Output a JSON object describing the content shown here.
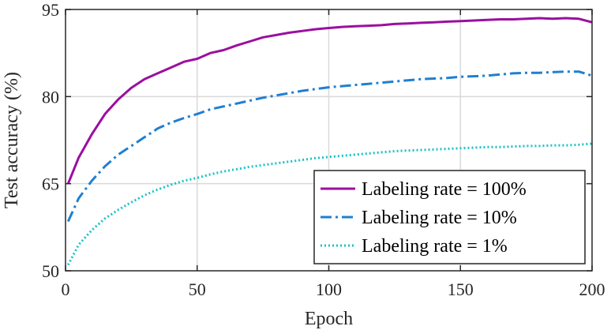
{
  "chart_data": {
    "type": "line",
    "title": "",
    "xlabel": "Epoch",
    "ylabel": "Test accuracy (%)",
    "xlim": [
      0,
      200
    ],
    "ylim": [
      50,
      95
    ],
    "xticks": [
      0,
      50,
      100,
      150,
      200
    ],
    "yticks": [
      50,
      65,
      80,
      95
    ],
    "xtick_labels": [
      "0",
      "50",
      "100",
      "150",
      "200"
    ],
    "ytick_labels": [
      "50",
      "65",
      "80",
      "95"
    ],
    "grid": true,
    "legend_position": "bottom-right",
    "series": [
      {
        "name": "Labeling rate = 100%",
        "color": "#9b0fa0",
        "style": "solid",
        "x": [
          1,
          5,
          10,
          15,
          20,
          25,
          30,
          35,
          40,
          45,
          50,
          55,
          60,
          65,
          70,
          75,
          80,
          85,
          90,
          95,
          100,
          105,
          110,
          115,
          120,
          125,
          130,
          135,
          140,
          145,
          150,
          155,
          160,
          165,
          170,
          175,
          180,
          185,
          190,
          195,
          200
        ],
        "values": [
          65,
          69.5,
          73.5,
          77,
          79.5,
          81.5,
          83,
          84,
          85,
          86,
          86.5,
          87.5,
          88,
          88.8,
          89.5,
          90.2,
          90.6,
          91,
          91.3,
          91.6,
          91.8,
          92,
          92.1,
          92.2,
          92.3,
          92.5,
          92.6,
          92.7,
          92.8,
          92.9,
          93,
          93.1,
          93.2,
          93.3,
          93.3,
          93.4,
          93.5,
          93.4,
          93.5,
          93.4,
          92.8
        ]
      },
      {
        "name": "Labeling rate = 10%",
        "color": "#1f7fd1",
        "style": "dash-dot",
        "x": [
          1,
          5,
          10,
          15,
          20,
          25,
          30,
          35,
          40,
          45,
          50,
          55,
          60,
          65,
          70,
          75,
          80,
          85,
          90,
          95,
          100,
          105,
          110,
          115,
          120,
          125,
          130,
          135,
          140,
          145,
          150,
          155,
          160,
          165,
          170,
          175,
          180,
          185,
          190,
          195,
          200
        ],
        "values": [
          58.5,
          62.5,
          65.5,
          68,
          70,
          71.5,
          73,
          74.5,
          75.5,
          76.3,
          77,
          77.8,
          78.3,
          78.8,
          79.3,
          79.8,
          80.2,
          80.6,
          81,
          81.3,
          81.6,
          81.8,
          82,
          82.2,
          82.4,
          82.6,
          82.8,
          83,
          83.1,
          83.2,
          83.4,
          83.5,
          83.6,
          83.8,
          84,
          84.1,
          84.1,
          84.2,
          84.3,
          84.3,
          83.6
        ]
      },
      {
        "name": "Labeling rate = 1%",
        "color": "#17c3c7",
        "style": "dotted",
        "x": [
          1,
          5,
          10,
          15,
          20,
          25,
          30,
          35,
          40,
          45,
          50,
          55,
          60,
          65,
          70,
          75,
          80,
          85,
          90,
          95,
          100,
          105,
          110,
          115,
          120,
          125,
          130,
          135,
          140,
          145,
          150,
          155,
          160,
          165,
          170,
          175,
          180,
          185,
          190,
          195,
          200
        ],
        "values": [
          51,
          54.5,
          57,
          59,
          60.5,
          61.8,
          63,
          64,
          64.8,
          65.5,
          66,
          66.6,
          67.1,
          67.5,
          67.9,
          68.2,
          68.5,
          68.8,
          69.1,
          69.4,
          69.6,
          69.8,
          70,
          70.2,
          70.4,
          70.6,
          70.7,
          70.8,
          70.9,
          71,
          71.1,
          71.2,
          71.3,
          71.3,
          71.4,
          71.5,
          71.5,
          71.6,
          71.6,
          71.7,
          71.9
        ]
      }
    ]
  }
}
